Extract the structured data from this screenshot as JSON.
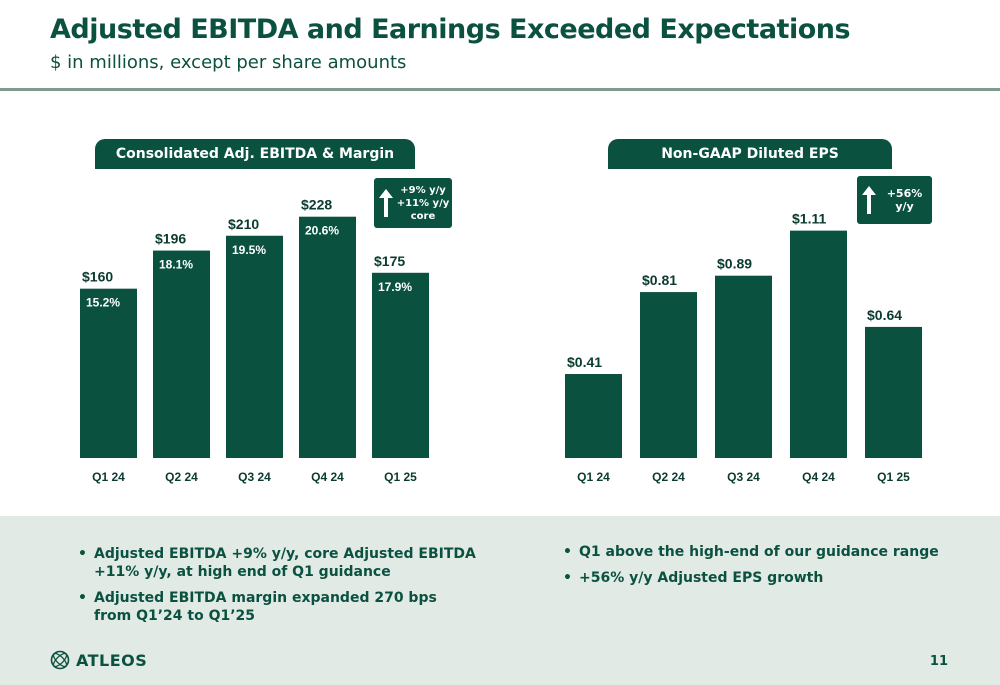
{
  "header": {
    "title": "Adjusted EBITDA and Earnings Exceeded Expectations",
    "subtitle": "$ in millions, except per share amounts"
  },
  "chart_data": [
    {
      "type": "bar",
      "title": "Consolidated Adj. EBITDA & Margin",
      "categories": [
        "Q1 24",
        "Q2 24",
        "Q3 24",
        "Q4 24",
        "Q1 25"
      ],
      "values": [
        160,
        196,
        210,
        228,
        175
      ],
      "value_labels": [
        "$160",
        "$196",
        "$210",
        "$228",
        "$175"
      ],
      "margin_labels": [
        "15.2%",
        "18.1%",
        "19.5%",
        "20.6%",
        "17.9%"
      ],
      "annotation": [
        "+9% y/y",
        "+11% y/y core"
      ],
      "ylim": [
        0,
        240
      ],
      "color": "#0b5140"
    },
    {
      "type": "bar",
      "title": "Non-GAAP Diluted EPS",
      "categories": [
        "Q1 24",
        "Q2 24",
        "Q3 24",
        "Q4 24",
        "Q1 25"
      ],
      "values": [
        0.41,
        0.81,
        0.89,
        1.11,
        0.64
      ],
      "value_labels": [
        "$0.41",
        "$0.81",
        "$0.89",
        "$1.11",
        "$0.64"
      ],
      "annotation": [
        "+56% y/y"
      ],
      "ylim": [
        0,
        1.24
      ],
      "color": "#0b5140"
    }
  ],
  "bullets_left": [
    "Adjusted EBITDA +9% y/y, core Adjusted EBITDA +11% y/y, at high end of Q1 guidance",
    "Adjusted EBITDA margin expanded 270 bps from Q1’24 to Q1’25"
  ],
  "bullets_right": [
    "Q1 above the high-end of our guidance range",
    "+56% y/y Adjusted EPS growth"
  ],
  "logo": {
    "text": "ATLEOS",
    "icon": "globe-icon"
  },
  "page_number": "11"
}
